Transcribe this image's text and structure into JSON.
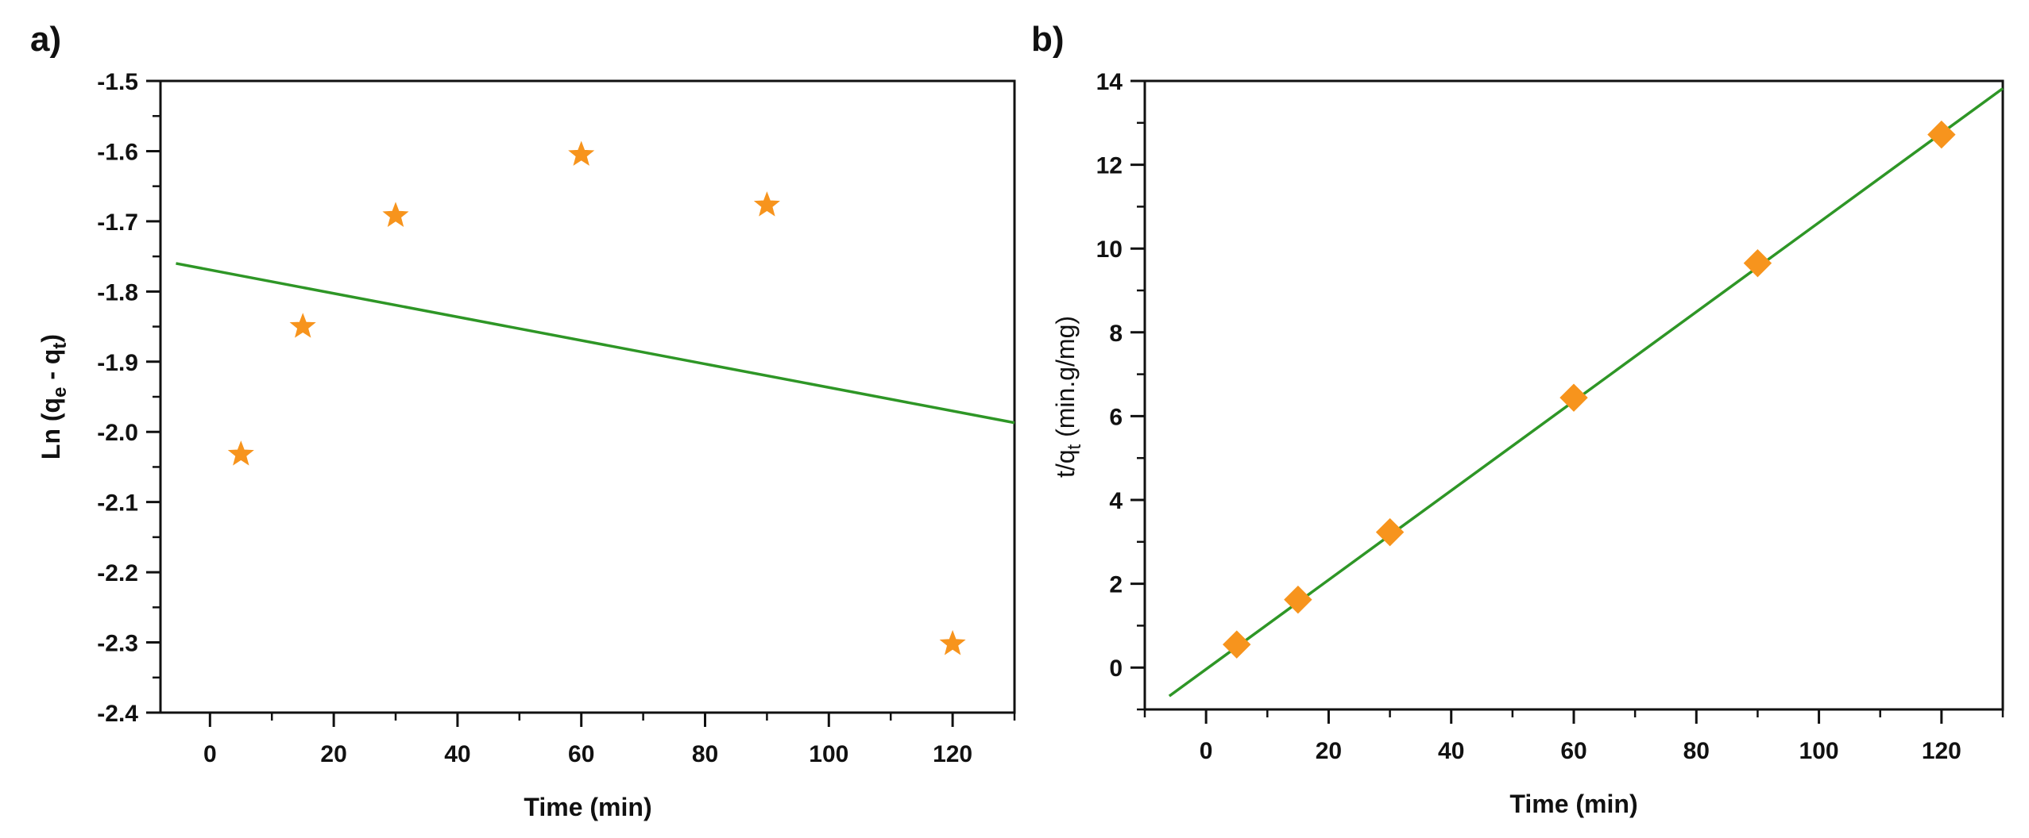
{
  "colors": {
    "marker": "#f7941d",
    "fit_line": "#2e9626",
    "axis": "#111111"
  },
  "chart_data": [
    {
      "panel_label": "a)",
      "type": "scatter",
      "marker": "star",
      "xlabel": "Time (min)",
      "ylabel_main": "Ln (q",
      "ylabel_sub1": "e",
      "ylabel_mid": " - q",
      "ylabel_sub2": "t",
      "ylabel_end": ")",
      "xlim": [
        -8,
        130
      ],
      "ylim": [
        -2.4,
        -1.5
      ],
      "xticks": [
        0,
        20,
        40,
        60,
        80,
        100,
        120
      ],
      "xtick_labels": [
        "0",
        "20",
        "40",
        "60",
        "80",
        "100",
        "120"
      ],
      "yticks": [
        -2.4,
        -2.3,
        -2.2,
        -2.1,
        -2.0,
        -1.9,
        -1.8,
        -1.7,
        -1.6,
        -1.5
      ],
      "ytick_labels": [
        "-2.4",
        "-2.3",
        "-2.2",
        "-2.1",
        "-2.0",
        "-1.9",
        "-1.8",
        "-1.7",
        "-1.6",
        "-1.5"
      ],
      "points": {
        "x": [
          5,
          15,
          30,
          60,
          90,
          120
        ],
        "y": [
          -2.032,
          -1.85,
          -1.692,
          -1.605,
          -1.677,
          -2.302
        ]
      },
      "fit_line": {
        "x": [
          -5.5,
          130
        ],
        "y": [
          -1.76,
          -1.987
        ]
      }
    },
    {
      "panel_label": "b)",
      "type": "scatter",
      "marker": "diamond",
      "xlabel": "Time (min)",
      "ylabel_main": "t/q",
      "ylabel_sub": "t",
      "ylabel_unit": "  (min.g/mg)",
      "xlim": [
        -10,
        130
      ],
      "ylim": [
        -1,
        14
      ],
      "xticks": [
        0,
        20,
        40,
        60,
        80,
        100,
        120
      ],
      "xtick_labels": [
        "0",
        "20",
        "40",
        "60",
        "80",
        "100",
        "120"
      ],
      "yticks": [
        0,
        2,
        4,
        6,
        8,
        10,
        12,
        14
      ],
      "ytick_labels": [
        "0",
        "2",
        "4",
        "6",
        "8",
        "10",
        "12",
        "14"
      ],
      "points": {
        "x": [
          5,
          15,
          30,
          60,
          90,
          120
        ],
        "y": [
          0.55,
          1.62,
          3.23,
          6.44,
          9.65,
          12.72
        ]
      },
      "fit_line": {
        "x": [
          -6,
          130
        ],
        "y": [
          -0.68,
          13.82
        ]
      }
    }
  ]
}
